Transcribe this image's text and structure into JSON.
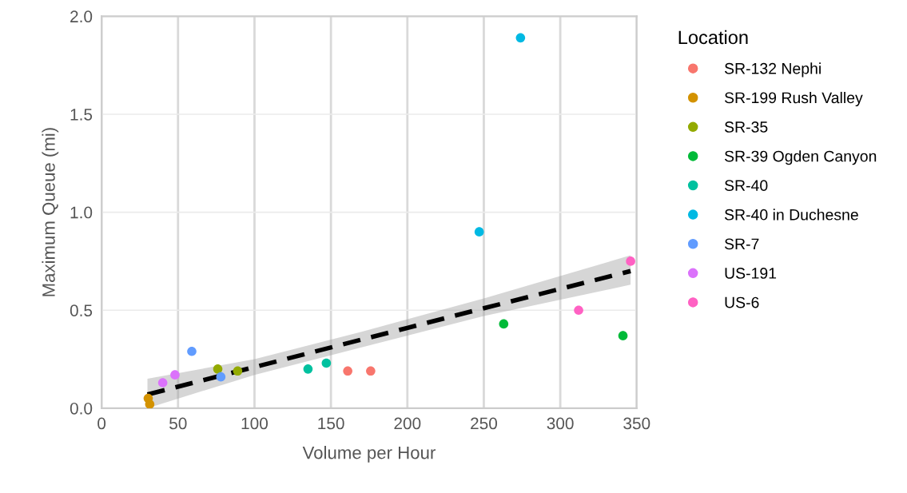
{
  "chart_data": {
    "type": "scatter",
    "xlabel": "Volume per Hour",
    "ylabel": "Maximum Queue (mi)",
    "legend_title": "Location",
    "legend": "right",
    "grid": true,
    "marker": "circle",
    "xlim": [
      0,
      350
    ],
    "xticks": [
      0,
      50,
      100,
      150,
      200,
      250,
      300,
      350
    ],
    "ylim": [
      0,
      2
    ],
    "yticks": [
      {
        "value": 0,
        "label": "0.0"
      },
      {
        "value": 0.5,
        "label": "0.5"
      },
      {
        "value": 1,
        "label": "1.0"
      },
      {
        "value": 1.5,
        "label": "1.5"
      },
      {
        "value": 2,
        "label": "2.0"
      }
    ],
    "series": [
      {
        "name": "SR-132 Nephi",
        "color": "#f8766d",
        "x": [
          161,
          176
        ],
        "values": [
          0.19,
          0.19
        ]
      },
      {
        "name": "SR-199 Rush Valley",
        "color": "#d39200",
        "x": [
          30.5,
          31.5
        ],
        "values": [
          0.05,
          0.02
        ]
      },
      {
        "name": "SR-35",
        "color": "#93aa00",
        "x": [
          76,
          89
        ],
        "values": [
          0.2,
          0.19
        ]
      },
      {
        "name": "SR-39 Ogden Canyon",
        "color": "#00ba38",
        "x": [
          263,
          341
        ],
        "values": [
          0.43,
          0.37
        ]
      },
      {
        "name": "SR-40",
        "color": "#00c19f",
        "x": [
          135,
          147
        ],
        "values": [
          0.2,
          0.23
        ]
      },
      {
        "name": "SR-40 in Duchesne",
        "color": "#00b9e3",
        "x": [
          247,
          274
        ],
        "values": [
          0.9,
          1.89
        ]
      },
      {
        "name": "SR-7",
        "color": "#619cff",
        "x": [
          59,
          78
        ],
        "values": [
          0.29,
          0.16
        ]
      },
      {
        "name": "US-191",
        "color": "#db72fb",
        "x": [
          40,
          48
        ],
        "values": [
          0.13,
          0.17
        ]
      },
      {
        "name": "US-6",
        "color": "#ff61c3",
        "x": [
          312,
          346
        ],
        "values": [
          0.5,
          0.75
        ]
      },
      {
        "type": "line",
        "color": "#000000",
        "line_style": "dashed",
        "marker": "none",
        "x": [
          30,
          100,
          170,
          250,
          346
        ],
        "values": [
          0.07,
          0.21,
          0.35,
          0.51,
          0.7
        ],
        "lower": [
          0,
          0.17,
          0.31,
          0.47,
          0.63
        ],
        "upper": [
          0.15,
          0.25,
          0.39,
          0.56,
          0.78
        ]
      }
    ]
  }
}
